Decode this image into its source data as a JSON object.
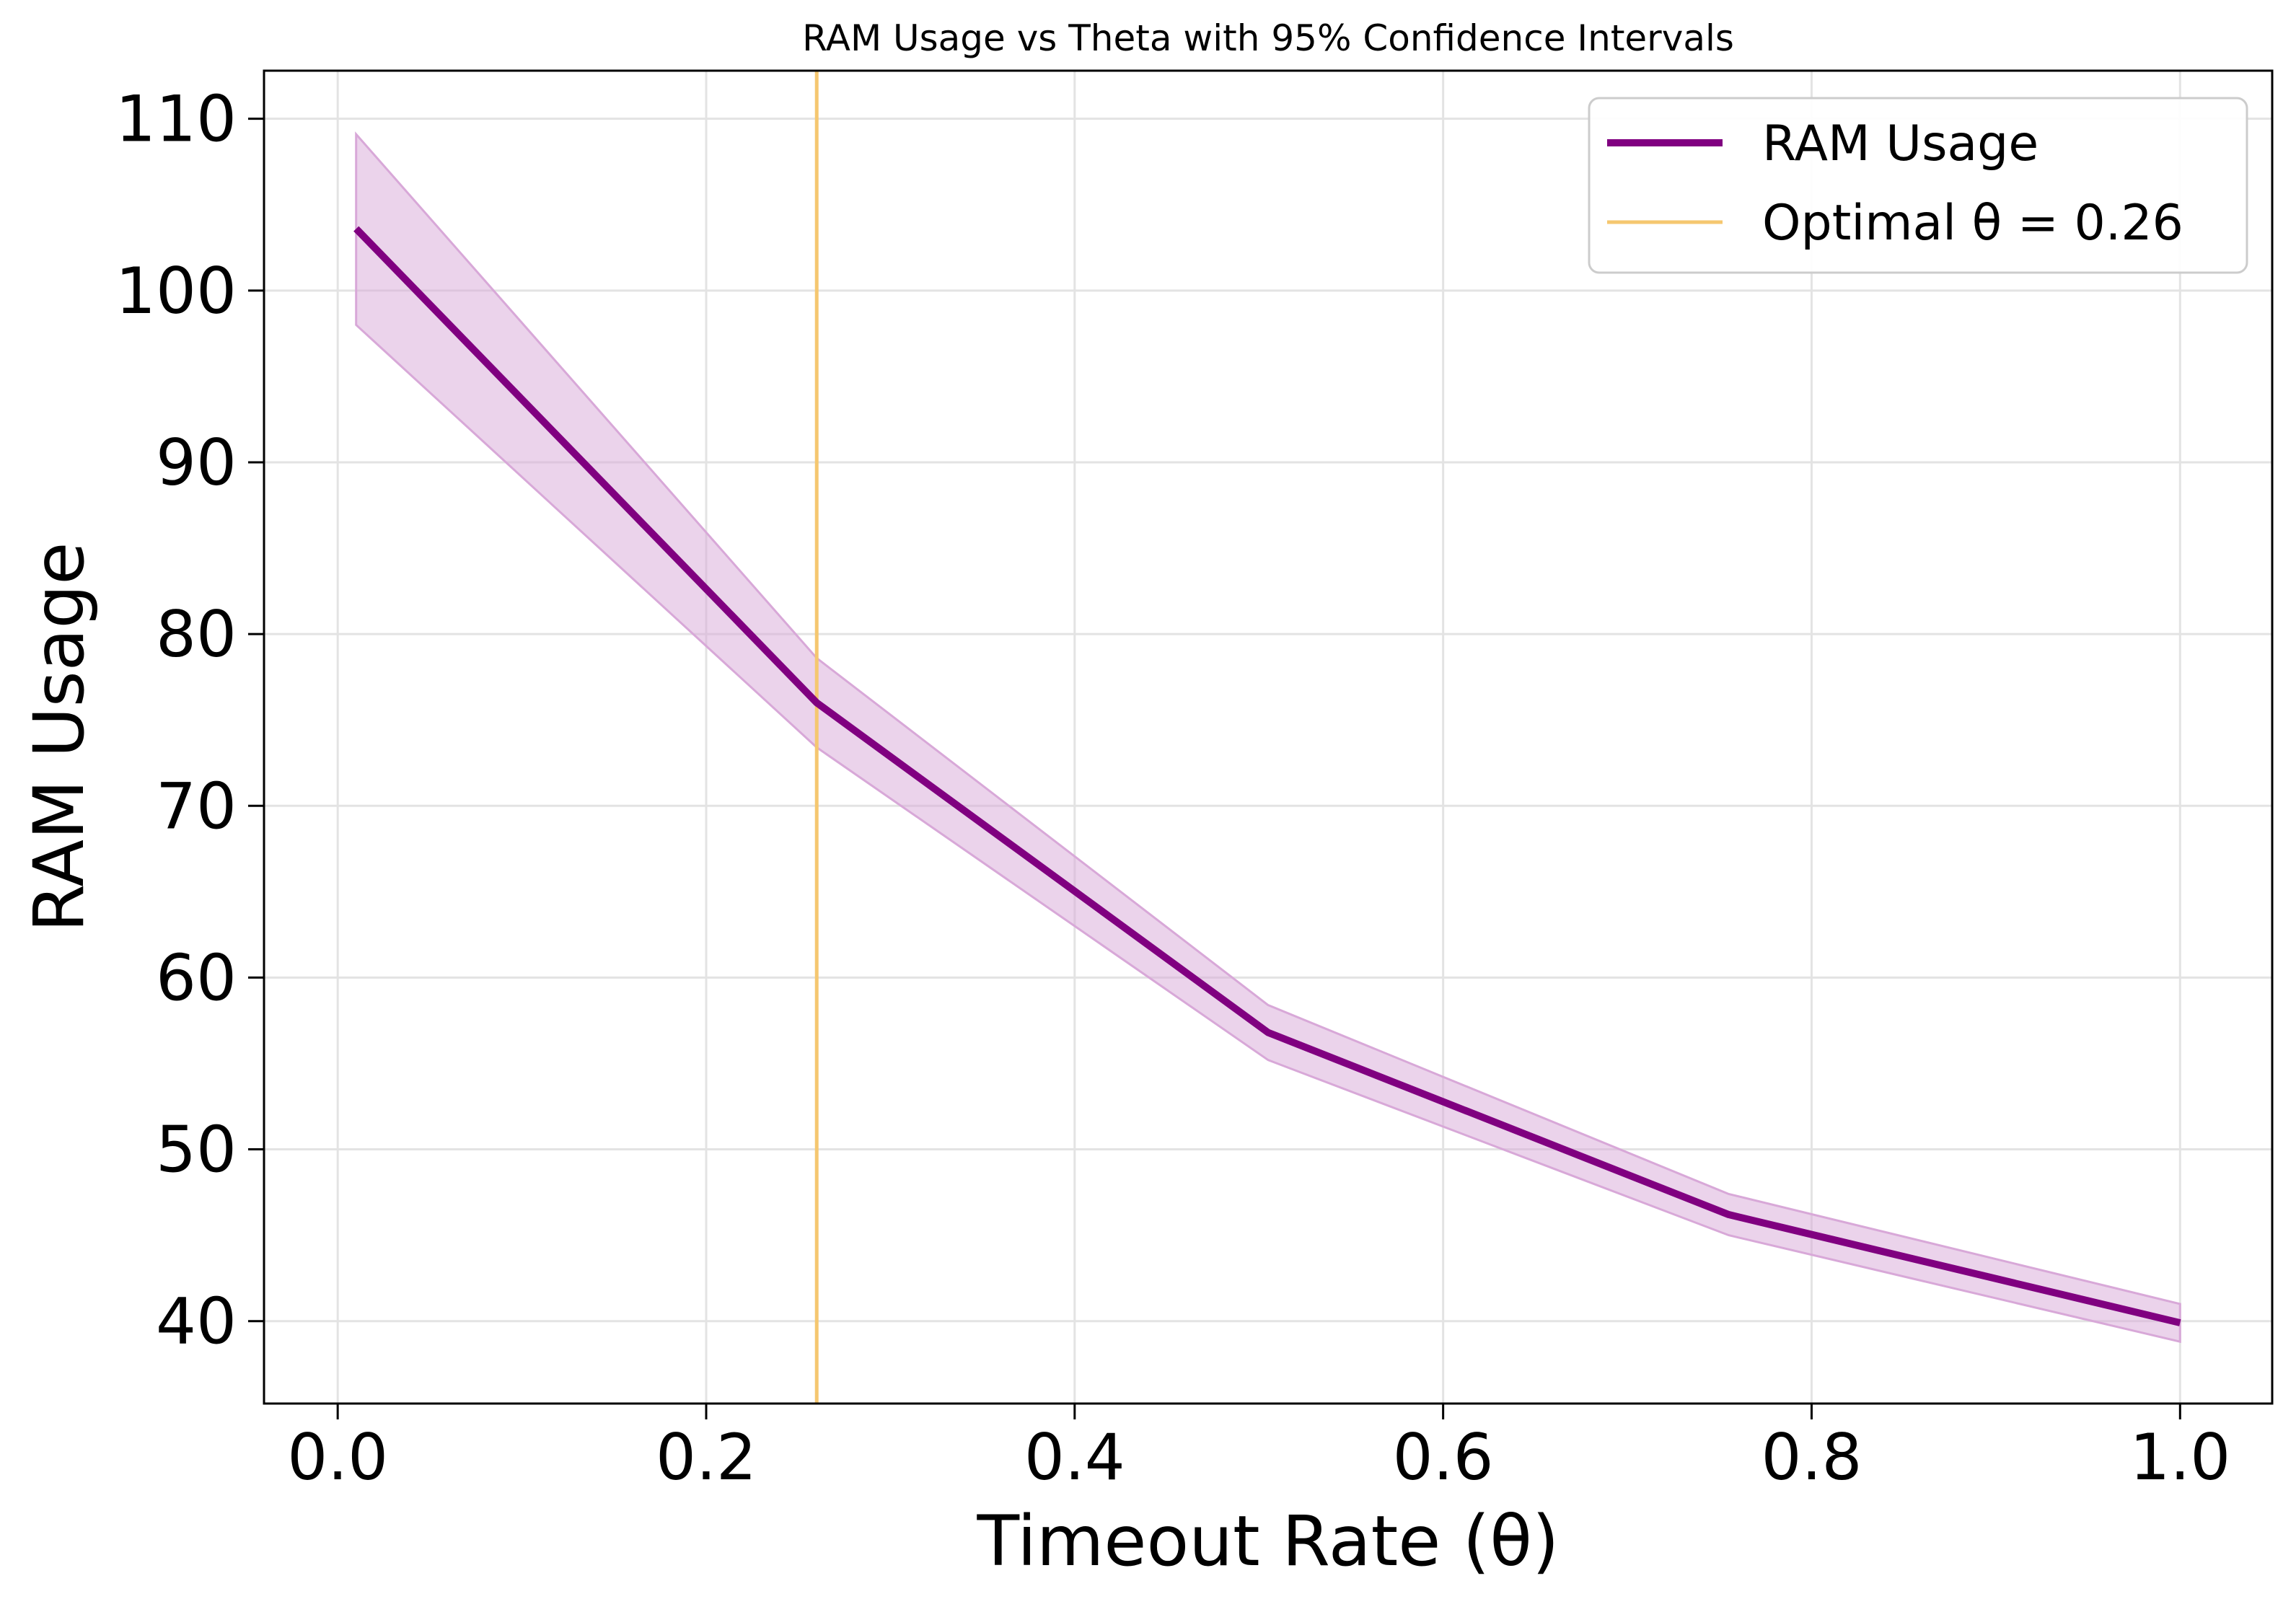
{
  "chart_data": {
    "type": "line",
    "title": "RAM Usage vs Theta with 95% Confidence Intervals",
    "xlabel": "Timeout Rate (θ)",
    "ylabel": "RAM Usage",
    "xlim": [
      -0.04,
      1.05
    ],
    "ylim": [
      35.2,
      112.8
    ],
    "xticks": [
      0.0,
      0.2,
      0.4,
      0.6,
      0.8,
      1.0
    ],
    "xtick_labels": [
      "0.0",
      "0.2",
      "0.4",
      "0.6",
      "0.8",
      "1.0"
    ],
    "yticks": [
      40,
      50,
      60,
      70,
      80,
      90,
      100,
      110
    ],
    "ytick_labels": [
      "40",
      "50",
      "60",
      "70",
      "80",
      "90",
      "100",
      "110"
    ],
    "grid": true,
    "legend_position": "top-right",
    "series": [
      {
        "name": "RAM Usage",
        "color": "#800080",
        "x": [
          0.01,
          0.26,
          0.505,
          0.755,
          1.0
        ],
        "y": [
          103.6,
          76.0,
          56.8,
          46.2,
          39.9
        ],
        "ci_lower": [
          98.0,
          73.4,
          55.2,
          45.0,
          38.8
        ],
        "ci_upper": [
          109.1,
          78.6,
          58.4,
          47.4,
          41.0
        ],
        "ci_color": "#d8a8d8"
      }
    ],
    "vlines": [
      {
        "name": "Optimal θ = 0.26",
        "x": 0.26,
        "color": "#f5c770"
      }
    ]
  }
}
